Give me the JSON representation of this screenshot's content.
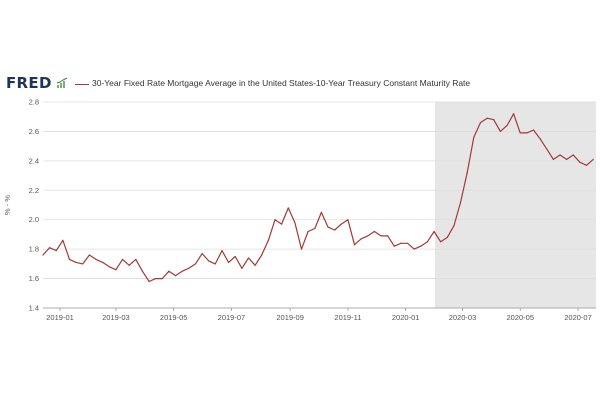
{
  "header": {
    "logo_text": "FRED",
    "legend_label": "30-Year Fixed Rate Mortgage Average in the United States-10-Year Treasury Constant Maturity Rate",
    "series_color": "#a33a35"
  },
  "chart_data": {
    "type": "line",
    "title": "",
    "xlabel": "",
    "ylabel": "% - %",
    "ylim": [
      1.4,
      2.8
    ],
    "yticks": [
      "1.4",
      "1.6",
      "1.8",
      "2.0",
      "2.2",
      "2.4",
      "2.6",
      "2.8"
    ],
    "xticks": [
      "2019-01",
      "2019-03",
      "2019-05",
      "2019-07",
      "2019-09",
      "2019-11",
      "2020-01",
      "2020-03",
      "2020-05",
      "2020-07"
    ],
    "x_range": [
      "2018-12-14",
      "2020-07-20"
    ],
    "grid": true,
    "shaded_region": {
      "start": "2020-02-01",
      "end": "2020-07-20",
      "color": "#e6e6e6"
    },
    "series": [
      {
        "color": "#a33a35",
        "x": [
          "2018-12-14",
          "2018-12-21",
          "2018-12-28",
          "2019-01-04",
          "2019-01-11",
          "2019-01-18",
          "2019-01-25",
          "2019-02-01",
          "2019-02-08",
          "2019-02-15",
          "2019-02-22",
          "2019-03-01",
          "2019-03-08",
          "2019-03-15",
          "2019-03-22",
          "2019-03-29",
          "2019-04-05",
          "2019-04-12",
          "2019-04-19",
          "2019-04-26",
          "2019-05-03",
          "2019-05-10",
          "2019-05-17",
          "2019-05-24",
          "2019-05-31",
          "2019-06-07",
          "2019-06-14",
          "2019-06-21",
          "2019-06-28",
          "2019-07-05",
          "2019-07-12",
          "2019-07-19",
          "2019-07-26",
          "2019-08-02",
          "2019-08-09",
          "2019-08-16",
          "2019-08-23",
          "2019-08-30",
          "2019-09-06",
          "2019-09-13",
          "2019-09-20",
          "2019-09-27",
          "2019-10-04",
          "2019-10-11",
          "2019-10-18",
          "2019-10-25",
          "2019-11-01",
          "2019-11-08",
          "2019-11-15",
          "2019-11-22",
          "2019-11-29",
          "2019-12-06",
          "2019-12-13",
          "2019-12-20",
          "2019-12-27",
          "2020-01-03",
          "2020-01-10",
          "2020-01-17",
          "2020-01-24",
          "2020-01-31",
          "2020-02-07",
          "2020-02-14",
          "2020-02-21",
          "2020-02-28",
          "2020-03-06",
          "2020-03-13",
          "2020-03-20",
          "2020-03-27",
          "2020-04-03",
          "2020-04-10",
          "2020-04-17",
          "2020-04-24",
          "2020-05-01",
          "2020-05-08",
          "2020-05-15",
          "2020-05-22",
          "2020-05-29",
          "2020-06-05",
          "2020-06-12",
          "2020-06-19",
          "2020-06-26",
          "2020-07-03",
          "2020-07-10",
          "2020-07-17"
        ],
        "values": [
          1.76,
          1.81,
          1.79,
          1.86,
          1.73,
          1.71,
          1.7,
          1.76,
          1.73,
          1.71,
          1.68,
          1.66,
          1.73,
          1.69,
          1.73,
          1.65,
          1.58,
          1.6,
          1.6,
          1.65,
          1.62,
          1.65,
          1.67,
          1.7,
          1.77,
          1.72,
          1.7,
          1.79,
          1.71,
          1.75,
          1.67,
          1.74,
          1.69,
          1.76,
          1.86,
          2.0,
          1.97,
          2.08,
          1.98,
          1.8,
          1.92,
          1.94,
          2.05,
          1.95,
          1.93,
          1.97,
          2.0,
          1.83,
          1.87,
          1.89,
          1.92,
          1.89,
          1.89,
          1.82,
          1.84,
          1.84,
          1.8,
          1.82,
          1.85,
          1.92,
          1.85,
          1.88,
          1.96,
          2.12,
          2.32,
          2.56,
          2.66,
          2.69,
          2.68,
          2.6,
          2.64,
          2.72,
          2.59,
          2.59,
          2.61,
          2.55,
          2.48,
          2.41,
          2.44,
          2.41,
          2.44,
          2.39,
          2.37,
          2.41
        ]
      }
    ]
  }
}
